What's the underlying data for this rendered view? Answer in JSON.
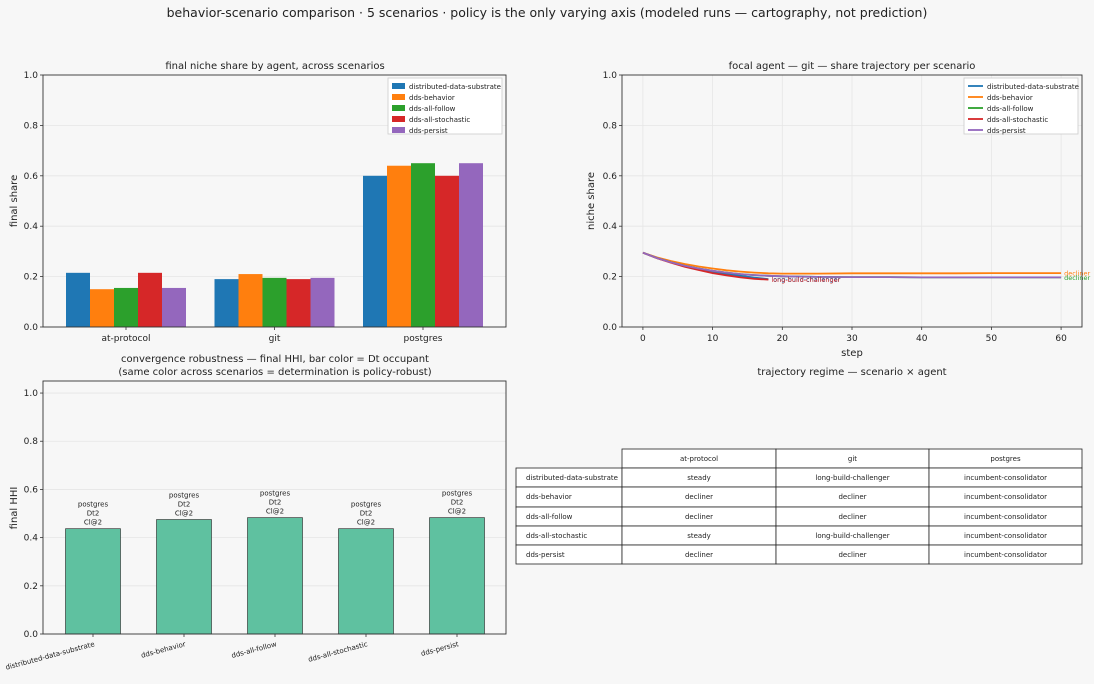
{
  "suptitle": "behavior-scenario comparison · 5 scenarios · policy is the only varying axis   (modeled runs — cartography, not prediction)",
  "colors": {
    "distributed-data-substrate": "#1f77b4",
    "dds-behavior": "#ff7f0e",
    "dds-all-follow": "#2ca02c",
    "dds-all-stochastic": "#d62728",
    "dds-persist": "#9467bd",
    "hhi_bar": "#5fc1a0"
  },
  "chart_data": [
    {
      "id": "bar-share",
      "type": "bar",
      "title": "final niche share by agent, across scenarios",
      "ylabel": "final share",
      "xlabel": "",
      "ylim": [
        0,
        1.0
      ],
      "yticks": [
        "0.0",
        "0.2",
        "0.4",
        "0.6",
        "0.8",
        "1.0"
      ],
      "categories": [
        "at-protocol",
        "git",
        "postgres"
      ],
      "legend_position": "top-right",
      "series": [
        {
          "name": "distributed-data-substrate",
          "values": [
            0.215,
            0.19,
            0.6
          ]
        },
        {
          "name": "dds-behavior",
          "values": [
            0.15,
            0.21,
            0.64
          ]
        },
        {
          "name": "dds-all-follow",
          "values": [
            0.155,
            0.195,
            0.65
          ]
        },
        {
          "name": "dds-all-stochastic",
          "values": [
            0.215,
            0.19,
            0.6
          ]
        },
        {
          "name": "dds-persist",
          "values": [
            0.155,
            0.195,
            0.65
          ]
        }
      ]
    },
    {
      "id": "line-git",
      "type": "line",
      "title": "focal agent — git — share trajectory per scenario",
      "xlabel": "step",
      "ylabel": "niche share",
      "xlim": [
        -3,
        63
      ],
      "ylim": [
        0,
        1.0
      ],
      "xticks": [
        "0",
        "10",
        "20",
        "30",
        "40",
        "50",
        "60"
      ],
      "yticks": [
        "0.0",
        "0.2",
        "0.4",
        "0.6",
        "0.8",
        "1.0"
      ],
      "legend_position": "top-right",
      "series": [
        {
          "name": "distributed-data-substrate",
          "x": [
            0,
            2,
            4,
            6,
            8,
            10,
            12,
            14,
            16,
            18
          ],
          "y": [
            0.295,
            0.275,
            0.258,
            0.243,
            0.231,
            0.22,
            0.211,
            0.203,
            0.196,
            0.19
          ],
          "end_label": "long-build-challenger"
        },
        {
          "name": "dds-behavior",
          "x": [
            0,
            2,
            4,
            6,
            8,
            10,
            12,
            14,
            16,
            18,
            20,
            25,
            30,
            35,
            40,
            45,
            50,
            55,
            60
          ],
          "y": [
            0.295,
            0.276,
            0.262,
            0.25,
            0.24,
            0.232,
            0.225,
            0.22,
            0.216,
            0.213,
            0.212,
            0.212,
            0.213,
            0.213,
            0.213,
            0.213,
            0.214,
            0.214,
            0.214
          ],
          "end_label": "decliner"
        },
        {
          "name": "dds-all-follow",
          "x": [
            0,
            2,
            4,
            6,
            8,
            10,
            12,
            14,
            16,
            18,
            20,
            25,
            30,
            35,
            40,
            45,
            50,
            55,
            60
          ],
          "y": [
            0.295,
            0.274,
            0.257,
            0.243,
            0.232,
            0.223,
            0.216,
            0.21,
            0.206,
            0.203,
            0.201,
            0.199,
            0.198,
            0.198,
            0.197,
            0.197,
            0.197,
            0.197,
            0.197
          ],
          "end_label": "decliner"
        },
        {
          "name": "dds-all-stochastic",
          "x": [
            0,
            2,
            4,
            6,
            8,
            10,
            12,
            14,
            16,
            18
          ],
          "y": [
            0.295,
            0.273,
            0.255,
            0.239,
            0.226,
            0.214,
            0.205,
            0.197,
            0.191,
            0.188
          ],
          "end_label": "long-build-challenger"
        },
        {
          "name": "dds-persist",
          "x": [
            0,
            2,
            4,
            6,
            8,
            10,
            12,
            14,
            16,
            18,
            20,
            25,
            30,
            35,
            40,
            45,
            50,
            55,
            60
          ],
          "y": [
            0.295,
            0.274,
            0.257,
            0.243,
            0.232,
            0.223,
            0.216,
            0.21,
            0.206,
            0.203,
            0.201,
            0.199,
            0.198,
            0.198,
            0.197,
            0.197,
            0.197,
            0.197,
            0.197
          ],
          "end_label": "decliner"
        }
      ]
    },
    {
      "id": "bar-hhi",
      "type": "bar",
      "title": "convergence robustness — final HHI, bar color = Dt occupant",
      "subtitle": "(same color across scenarios = determination is policy-robust)",
      "ylabel": "final HHI",
      "xlabel": "",
      "ylim": [
        0,
        1.05
      ],
      "yticks": [
        "0.0",
        "0.2",
        "0.4",
        "0.6",
        "0.8",
        "1.0"
      ],
      "categories": [
        "distributed-data-substrate",
        "dds-behavior",
        "dds-all-follow",
        "dds-all-stochastic",
        "dds-persist"
      ],
      "values": [
        0.437,
        0.475,
        0.483,
        0.437,
        0.483
      ],
      "annotations": [
        [
          "postgres",
          "Dt2",
          "Cl@2"
        ],
        [
          "postgres",
          "Dt2",
          "Cl@2"
        ],
        [
          "postgres",
          "Dt2",
          "Cl@2"
        ],
        [
          "postgres",
          "Dt2",
          "Cl@2"
        ],
        [
          "postgres",
          "Dt2",
          "Cl@2"
        ]
      ]
    },
    {
      "id": "regime-table",
      "type": "table",
      "title": "trajectory regime — scenario × agent",
      "columns": [
        "at-protocol",
        "git",
        "postgres"
      ],
      "rows": [
        {
          "label": "distributed-data-substrate",
          "cells": [
            "steady",
            "long-build-challenger",
            "incumbent-consolidator"
          ]
        },
        {
          "label": "dds-behavior",
          "cells": [
            "decliner",
            "decliner",
            "incumbent-consolidator"
          ]
        },
        {
          "label": "dds-all-follow",
          "cells": [
            "decliner",
            "decliner",
            "incumbent-consolidator"
          ]
        },
        {
          "label": "dds-all-stochastic",
          "cells": [
            "steady",
            "long-build-challenger",
            "incumbent-consolidator"
          ]
        },
        {
          "label": "dds-persist",
          "cells": [
            "decliner",
            "decliner",
            "incumbent-consolidator"
          ]
        }
      ]
    }
  ]
}
